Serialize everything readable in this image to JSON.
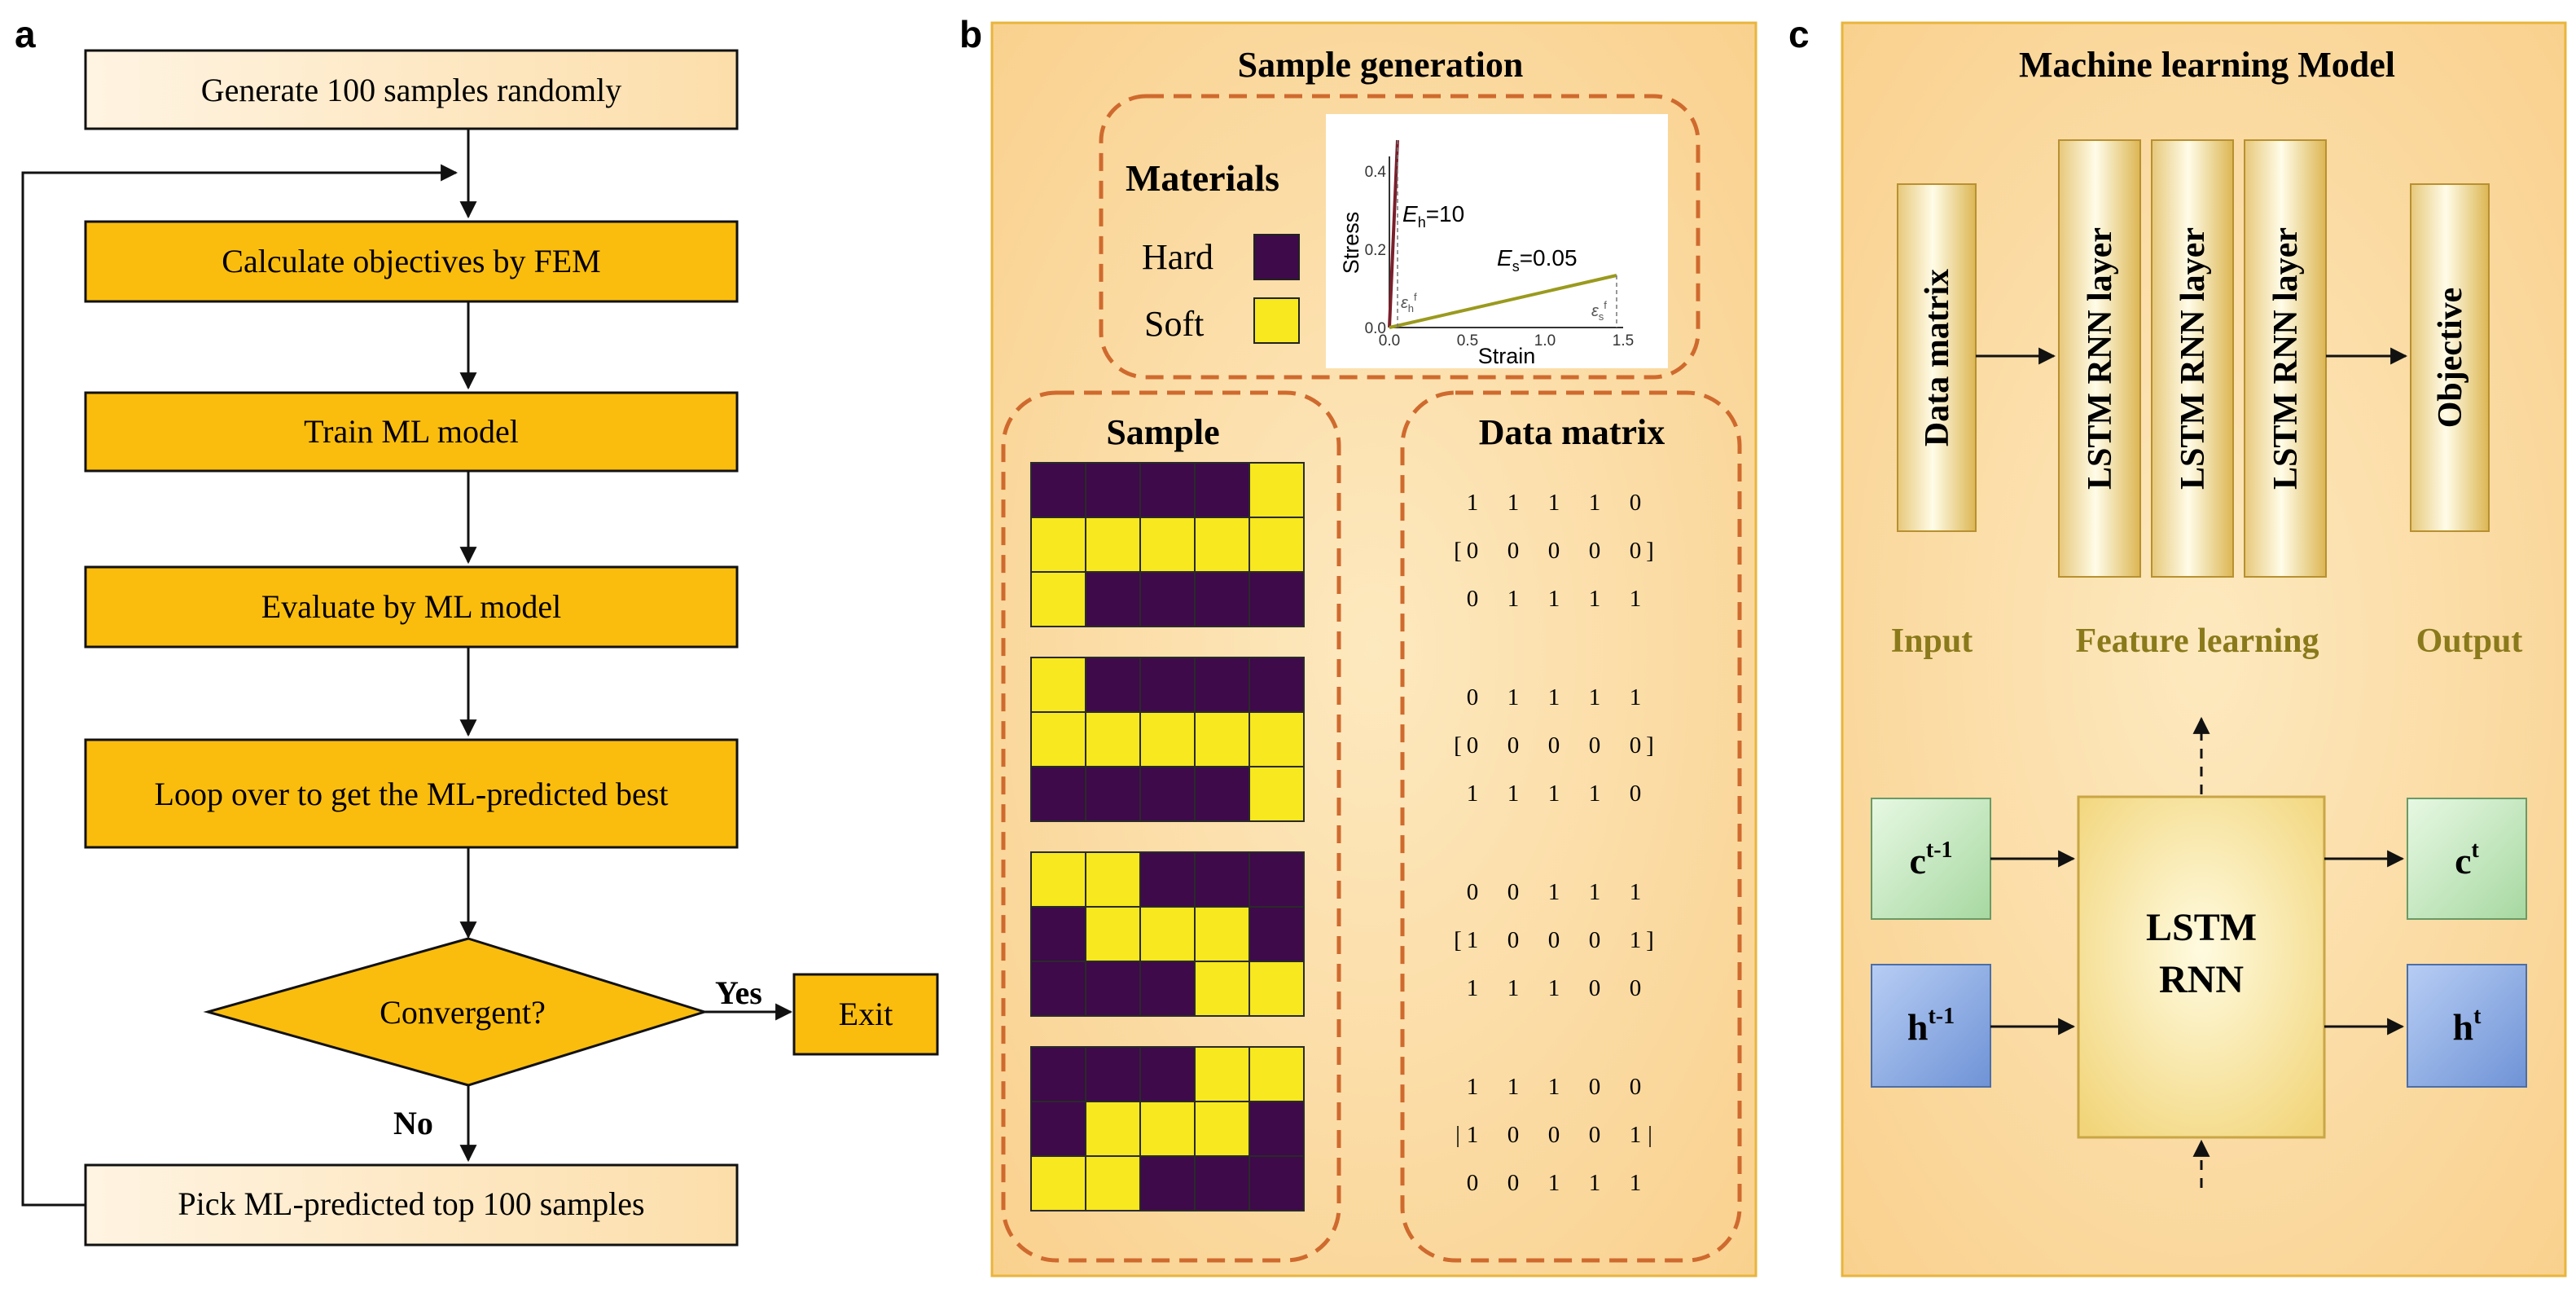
{
  "panels": {
    "a": {
      "letter": "a",
      "steps": {
        "start": "Generate 100 samples randomly",
        "fem": "Calculate objectives by FEM",
        "train": "Train ML model",
        "evaluate": "Evaluate by ML model",
        "loop": "Loop over to get the ML-predicted best",
        "decision": "Convergent?",
        "exit": "Exit",
        "pick": "Pick ML-predicted top 100 samples"
      },
      "yes_label": "Yes",
      "no_label": "No"
    },
    "b": {
      "letter": "b",
      "title": "Sample generation",
      "materials_title": "Materials",
      "hard_label": "Hard",
      "soft_label": "Soft",
      "sample_title": "Sample",
      "matrix_title": "Data matrix",
      "matrices": [
        {
          "rows": [
            [
              "1",
              "1",
              "1",
              "1",
              "0"
            ],
            [
              "0",
              "0",
              "0",
              "0",
              "0"
            ],
            [
              "0",
              "1",
              "1",
              "1",
              "1"
            ]
          ],
          "open": "[",
          "close": "]"
        },
        {
          "rows": [
            [
              "0",
              "1",
              "1",
              "1",
              "1"
            ],
            [
              "0",
              "0",
              "0",
              "0",
              "0"
            ],
            [
              "1",
              "1",
              "1",
              "1",
              "0"
            ]
          ],
          "open": "[",
          "close": "]"
        },
        {
          "rows": [
            [
              "0",
              "0",
              "1",
              "1",
              "1"
            ],
            [
              "1",
              "0",
              "0",
              "0",
              "1"
            ],
            [
              "1",
              "1",
              "1",
              "0",
              "0"
            ]
          ],
          "open": "[",
          "close": "]"
        },
        {
          "rows": [
            [
              "1",
              "1",
              "1",
              "0",
              "0"
            ],
            [
              "1",
              "0",
              "0",
              "0",
              "1"
            ],
            [
              "0",
              "0",
              "1",
              "1",
              "1"
            ]
          ],
          "open": "|",
          "close": "|"
        }
      ],
      "inset_chart": {
        "y_axis_label": "Stress",
        "x_axis_label": "Strain",
        "y_ticks": [
          "0.0",
          "0.2",
          "0.4"
        ],
        "x_ticks": [
          "0.0",
          "0.5",
          "1.0",
          "1.5"
        ],
        "hard_modulus_sym": "E",
        "hard_modulus_sub": "h",
        "hard_modulus_val": "=10",
        "soft_modulus_sym": "E",
        "soft_modulus_sub": "s",
        "soft_modulus_val": "=0.05",
        "hard_strain_sym": "ε",
        "hard_strain_sub": "h",
        "soft_strain_sym": "ε",
        "soft_strain_sub": "s",
        "strain_sup": "f",
        "hard_color": "#7a1f2b",
        "soft_color": "#9a9a1e"
      }
    },
    "c": {
      "letter": "c",
      "title": "Machine learning Model",
      "input_box": "Data matrix",
      "lstm_layer": "LSTM RNN layer",
      "output_box": "Objective",
      "input_label": "Input",
      "feature_label": "Feature learning",
      "output_label": "Output",
      "cell": {
        "line1": "LSTM",
        "line2": "RNN"
      },
      "c_in": {
        "base": "c",
        "sup": "t-1"
      },
      "h_in": {
        "base": "h",
        "sup": "t-1"
      },
      "c_out": {
        "base": "c",
        "sup": "t"
      },
      "h_out": {
        "base": "h",
        "sup": "t"
      }
    }
  },
  "colors": {
    "flow_fill": "#fbbd0d",
    "flow_light": "#fde9c6",
    "hard": "#3e0a4a",
    "soft": "#f7e81f",
    "dashed": "#cf6a2e",
    "panel_border": "#e8b53c",
    "c_box_green": "#cfeecb",
    "h_box_blue": "#8eaee6",
    "caption_olive": "#8a7a1b"
  }
}
